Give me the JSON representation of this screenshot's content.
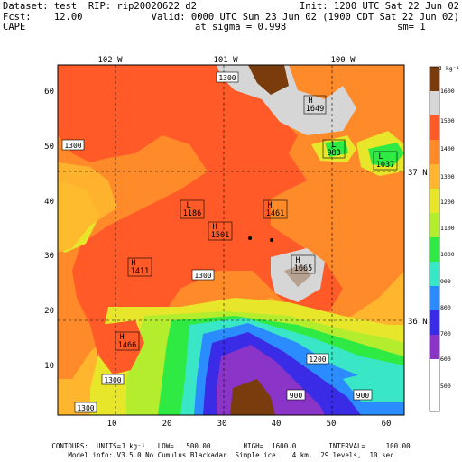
{
  "header": {
    "line1_left": "Dataset: test  RIP: rip20020622 d2",
    "line1_right": "Init: 1200 UTC Sat 22 Jun 02",
    "line2_left": "Fcst:    12.00",
    "line2_right": "Valid: 0000 UTC Sun 23 Jun 02 (1900 CDT Sat 22 Jun 02)",
    "line3_left": "CAPE",
    "line3_center": "at sigma = 0.998",
    "line3_right": "sm= 1"
  },
  "map": {
    "lon_labels": [
      "102 W",
      "101 W",
      "100 W"
    ],
    "lat_labels": [
      "37 N",
      "36 N"
    ],
    "x_ticks": [
      "10",
      "20",
      "30",
      "40",
      "50",
      "60"
    ],
    "y_ticks": [
      "10",
      "20",
      "30",
      "40",
      "50",
      "60"
    ],
    "contour_labels": [
      {
        "text": "1300",
        "kind": "label"
      },
      {
        "text": "1300",
        "kind": "label"
      },
      {
        "text": "1300",
        "kind": "label"
      },
      {
        "text": "1300",
        "kind": "label"
      },
      {
        "text": "1300",
        "kind": "label"
      },
      {
        "text": "1200",
        "kind": "label"
      },
      {
        "text": "1200",
        "kind": "label"
      },
      {
        "text": "1300",
        "kind": "label"
      },
      {
        "text": "900",
        "kind": "label"
      },
      {
        "text": "900",
        "kind": "label"
      }
    ],
    "extrema": [
      {
        "type": "H",
        "value": "1649"
      },
      {
        "type": "L",
        "value": "983"
      },
      {
        "type": "L",
        "value": "1037"
      },
      {
        "type": "L",
        "value": "1186"
      },
      {
        "type": "H",
        "value": "1461"
      },
      {
        "type": "H",
        "value": "1501"
      },
      {
        "type": "H",
        "value": "1411"
      },
      {
        "type": "H",
        "value": "1665"
      },
      {
        "type": "H",
        "value": "1466"
      }
    ]
  },
  "legend": {
    "unit": "J kg⁻¹",
    "levels": [
      "1600",
      "1500",
      "1400",
      "1300",
      "1200",
      "1100",
      "1000",
      "900",
      "800",
      "700",
      "600",
      "500"
    ],
    "colors": [
      "#7a3c0c",
      "#d6d6d6",
      "#ff5a28",
      "#ff8a2a",
      "#ffb62e",
      "#e8e62a",
      "#b4ec2e",
      "#30ea44",
      "#39e6c6",
      "#2b8cff",
      "#3a2ce6",
      "#8a34c8",
      "#ffffff"
    ]
  },
  "footer": {
    "line1": "CONTOURS:  UNITS=J kg⁻¹   LOW=   500.00        HIGH=  1600.0        INTERVAL=     100.00",
    "line2": "Model info: V3.5.0 No Cumulus Blackadar  Simple ice    4 km,  29 levels,  10 sec"
  }
}
